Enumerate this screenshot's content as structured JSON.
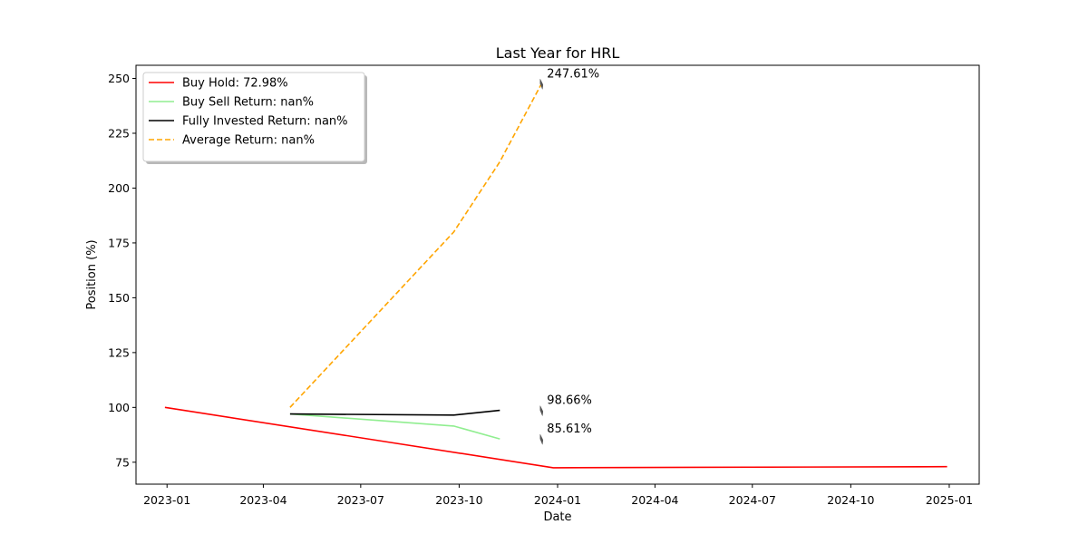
{
  "chart_data": {
    "type": "line",
    "title": "Last Year for HRL",
    "xlabel": "Date",
    "ylabel": "Position (%)",
    "x_ticks": [
      "2023-01",
      "2023-04",
      "2023-07",
      "2023-10",
      "2024-01",
      "2024-04",
      "2024-07",
      "2024-10",
      "2025-01"
    ],
    "y_ticks": [
      75,
      100,
      125,
      150,
      175,
      200,
      225,
      250
    ],
    "xlim": [
      "2022-12-03",
      "2025-01-29"
    ],
    "ylim": [
      65,
      256
    ],
    "grid": false,
    "legend_position": "top-left",
    "series": [
      {
        "name": "Buy Hold: 72.98%",
        "color": "#ff0000",
        "dash": "solid",
        "points": [
          {
            "x": "2022-12-30",
            "y": 100
          },
          {
            "x": "2023-12-28",
            "y": 72.5
          },
          {
            "x": "2024-12-30",
            "y": 72.98
          }
        ]
      },
      {
        "name": "Buy Sell Return: nan%",
        "color": "#90ee90",
        "dash": "solid",
        "points": [
          {
            "x": "2023-04-26",
            "y": 97
          },
          {
            "x": "2023-09-26",
            "y": 91.5
          },
          {
            "x": "2023-11-08",
            "y": 85.61
          }
        ]
      },
      {
        "name": "Fully Invested Return: nan%",
        "color": "#000000",
        "dash": "solid",
        "points": [
          {
            "x": "2023-04-26",
            "y": 97
          },
          {
            "x": "2023-09-26",
            "y": 96.5
          },
          {
            "x": "2023-11-08",
            "y": 98.66
          }
        ]
      },
      {
        "name": "Average Return: nan%",
        "color": "#ffa500",
        "dash": "dashed",
        "points": [
          {
            "x": "2023-04-26",
            "y": 100
          },
          {
            "x": "2023-09-26",
            "y": 180
          },
          {
            "x": "2023-11-08",
            "y": 212
          },
          {
            "x": "2023-12-17",
            "y": 247.61
          }
        ]
      }
    ],
    "annotations": [
      {
        "text": "247.61%",
        "x": "2023-12-17",
        "y": 247.61
      },
      {
        "text": "98.66%",
        "x": "2023-12-17",
        "y": 98.66
      },
      {
        "text": "85.61%",
        "x": "2023-12-17",
        "y": 85.61
      }
    ]
  }
}
